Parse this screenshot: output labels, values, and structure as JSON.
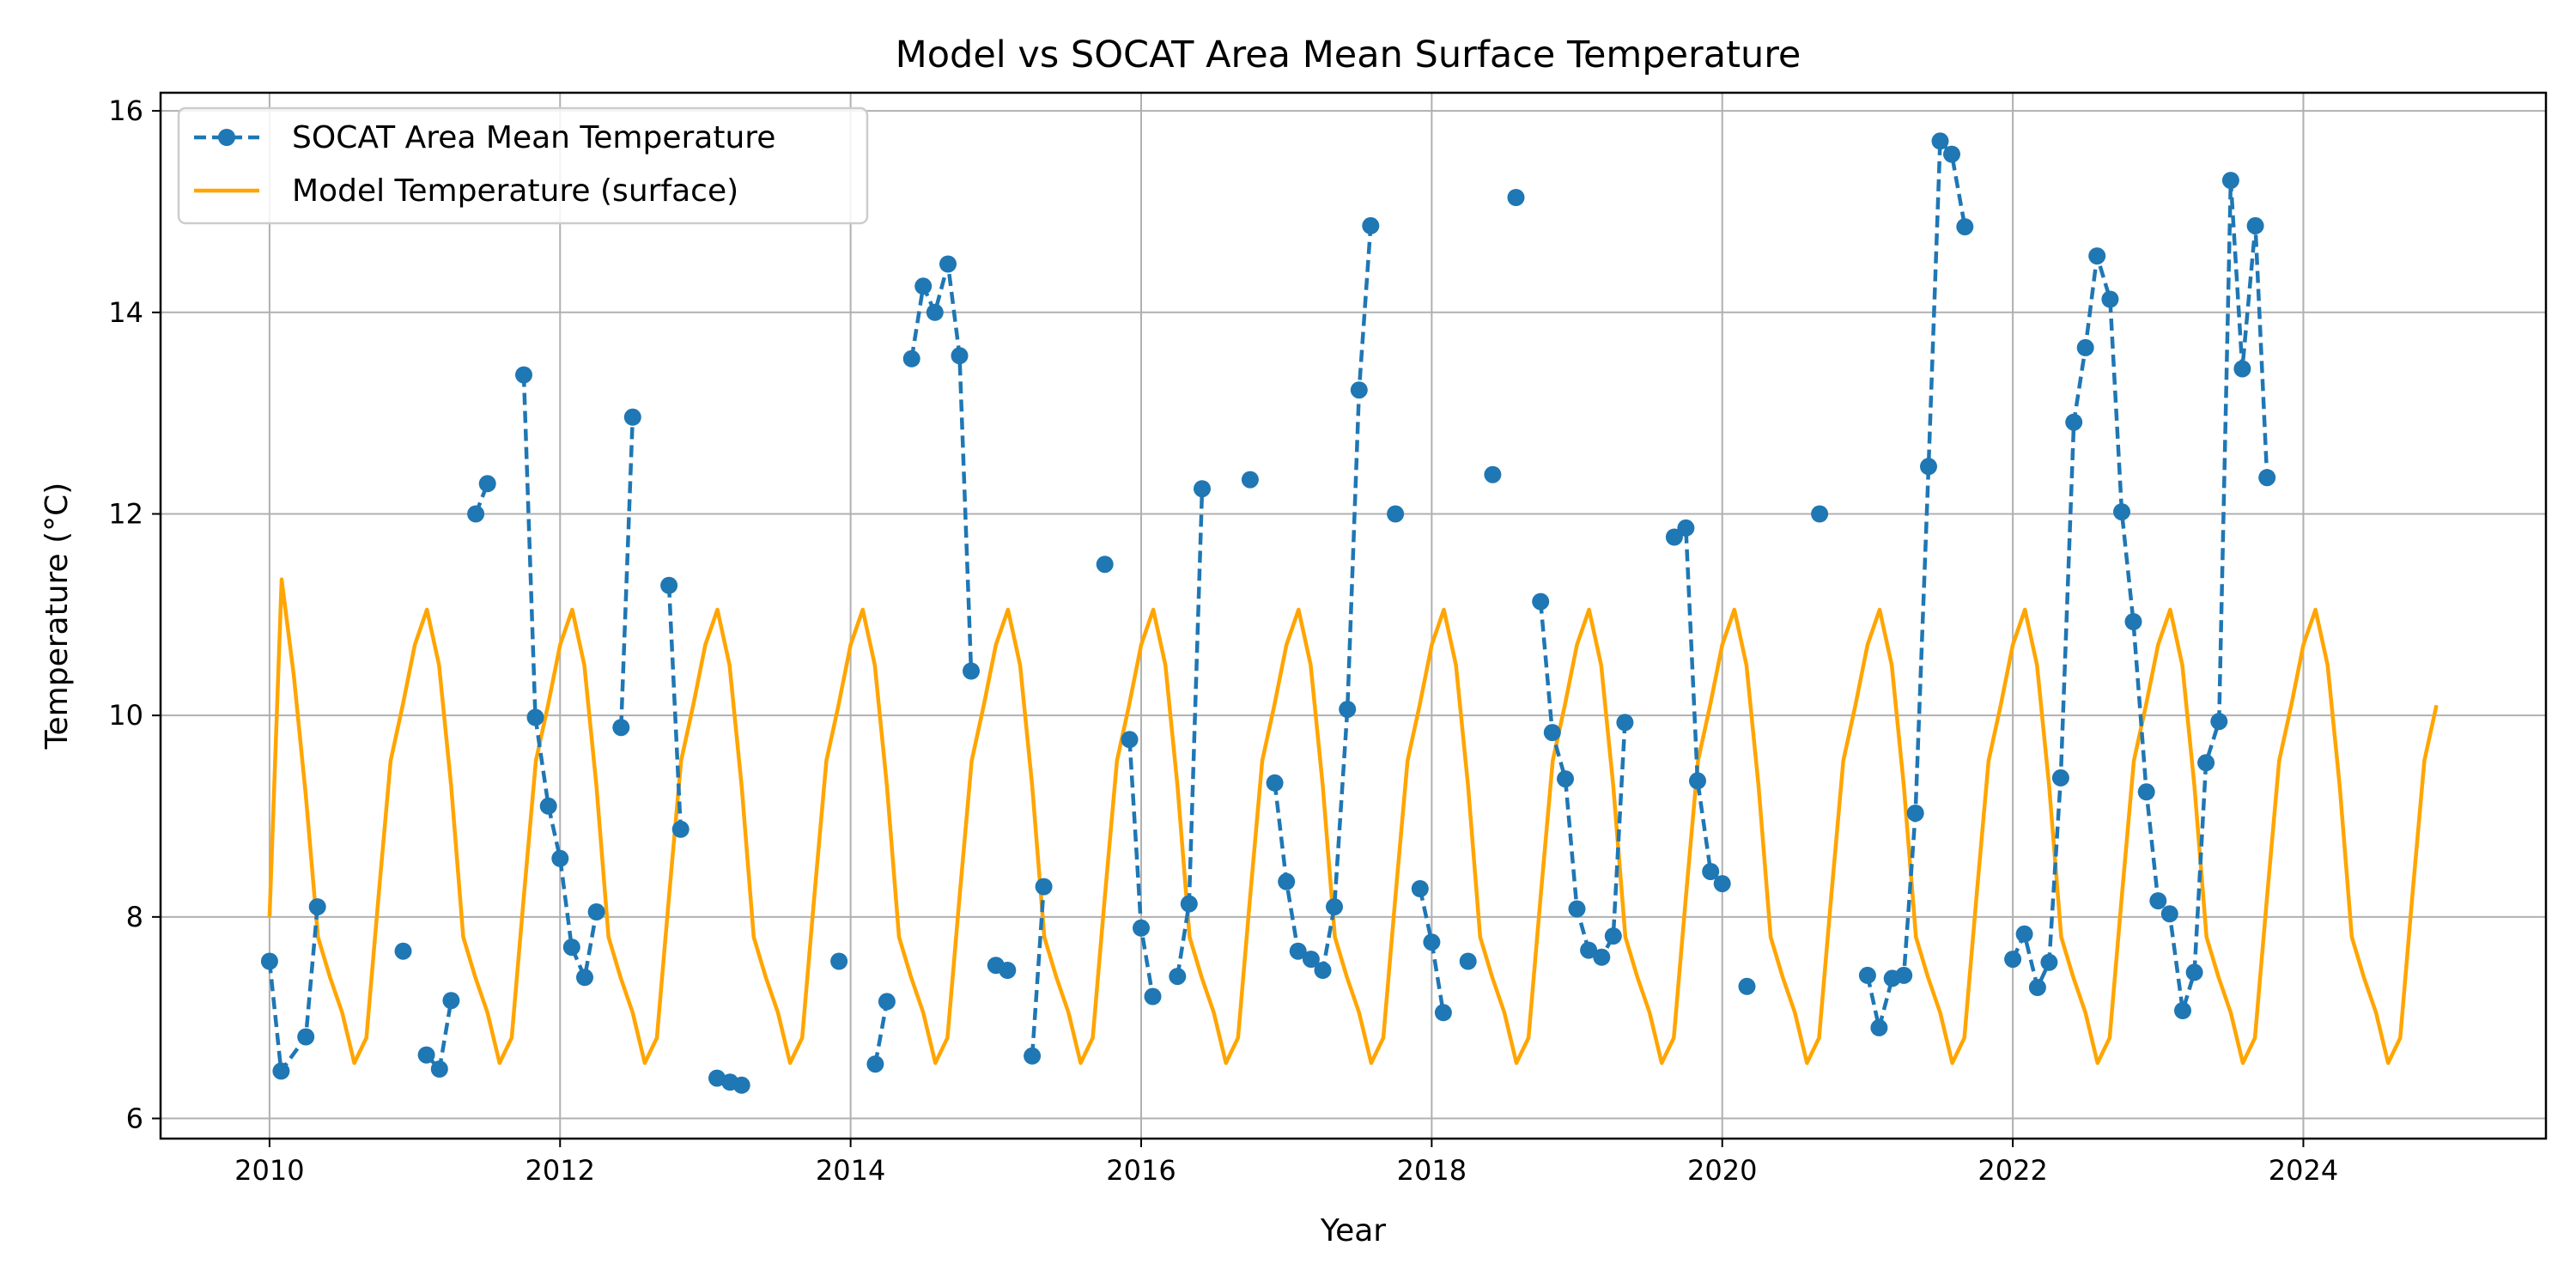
{
  "chart_data": {
    "type": "line",
    "title": "Model vs SOCAT Area Mean Surface Temperature",
    "xlabel": "Year",
    "ylabel": "Temperature (°C)",
    "xlim": [
      2009.25,
      2025.67
    ],
    "ylim": [
      5.8,
      16.18
    ],
    "x_ticks": [
      2010,
      2012,
      2014,
      2016,
      2018,
      2020,
      2022,
      2024
    ],
    "y_ticks": [
      6,
      8,
      10,
      12,
      14,
      16
    ],
    "grid": true,
    "legend_position": "upper-left",
    "series": [
      {
        "name": "SOCAT Area Mean Temperature",
        "color": "#1f77b4",
        "style": "dashed-with-markers",
        "segments": [
          [
            [
              2010.0,
              7.56
            ],
            [
              2010.08,
              6.47
            ],
            [
              2010.25,
              6.81
            ],
            [
              2010.33,
              8.1
            ]
          ],
          [
            [
              2010.92,
              7.66
            ]
          ],
          [
            [
              2011.08,
              6.63
            ],
            [
              2011.17,
              6.49
            ],
            [
              2011.25,
              7.17
            ]
          ],
          [
            [
              2011.42,
              12.0
            ],
            [
              2011.5,
              12.3
            ]
          ],
          [
            [
              2011.75,
              13.38
            ],
            [
              2011.83,
              9.98
            ],
            [
              2011.92,
              9.1
            ],
            [
              2012.0,
              8.58
            ],
            [
              2012.08,
              7.7
            ],
            [
              2012.17,
              7.4
            ],
            [
              2012.25,
              8.05
            ]
          ],
          [
            [
              2012.42,
              9.88
            ],
            [
              2012.5,
              12.96
            ]
          ],
          [
            [
              2012.75,
              11.29
            ],
            [
              2012.83,
              8.87
            ]
          ],
          [
            [
              2013.08,
              6.4
            ],
            [
              2013.17,
              6.36
            ],
            [
              2013.25,
              6.33
            ]
          ],
          [
            [
              2013.92,
              7.56
            ]
          ],
          [
            [
              2014.17,
              6.54
            ],
            [
              2014.25,
              7.16
            ]
          ],
          [
            [
              2014.42,
              13.54
            ],
            [
              2014.5,
              14.26
            ],
            [
              2014.58,
              14.0
            ],
            [
              2014.67,
              14.48
            ],
            [
              2014.75,
              13.57
            ],
            [
              2014.83,
              10.44
            ]
          ],
          [
            [
              2015.0,
              7.52
            ],
            [
              2015.08,
              7.47
            ]
          ],
          [
            [
              2015.25,
              6.62
            ],
            [
              2015.33,
              8.3
            ]
          ],
          [
            [
              2015.75,
              11.5
            ]
          ],
          [
            [
              2015.92,
              9.76
            ],
            [
              2016.0,
              7.89
            ],
            [
              2016.08,
              7.21
            ]
          ],
          [
            [
              2016.25,
              7.41
            ],
            [
              2016.33,
              8.13
            ],
            [
              2016.42,
              12.25
            ]
          ],
          [
            [
              2016.75,
              12.34
            ]
          ],
          [
            [
              2016.92,
              9.33
            ],
            [
              2017.0,
              8.35
            ],
            [
              2017.08,
              7.66
            ],
            [
              2017.17,
              7.58
            ],
            [
              2017.25,
              7.47
            ],
            [
              2017.33,
              8.1
            ],
            [
              2017.42,
              10.06
            ],
            [
              2017.5,
              13.23
            ],
            [
              2017.58,
              14.86
            ]
          ],
          [
            [
              2017.75,
              12.0
            ]
          ],
          [
            [
              2017.92,
              8.28
            ],
            [
              2018.0,
              7.75
            ],
            [
              2018.08,
              7.05
            ]
          ],
          [
            [
              2018.25,
              7.56
            ]
          ],
          [
            [
              2018.42,
              12.39
            ]
          ],
          [
            [
              2018.58,
              15.14
            ]
          ],
          [
            [
              2018.75,
              11.13
            ],
            [
              2018.83,
              9.83
            ],
            [
              2018.92,
              9.37
            ],
            [
              2019.0,
              8.08
            ],
            [
              2019.08,
              7.67
            ],
            [
              2019.17,
              7.6
            ],
            [
              2019.25,
              7.81
            ],
            [
              2019.33,
              9.93
            ]
          ],
          [
            [
              2019.67,
              11.77
            ],
            [
              2019.75,
              11.86
            ],
            [
              2019.83,
              9.35
            ],
            [
              2019.92,
              8.45
            ],
            [
              2020.0,
              8.33
            ]
          ],
          [
            [
              2020.17,
              7.31
            ]
          ],
          [
            [
              2020.67,
              12.0
            ]
          ],
          [
            [
              2021.0,
              7.42
            ],
            [
              2021.08,
              6.9
            ],
            [
              2021.17,
              7.39
            ],
            [
              2021.25,
              7.42
            ],
            [
              2021.33,
              9.03
            ],
            [
              2021.42,
              12.47
            ],
            [
              2021.5,
              15.7
            ],
            [
              2021.58,
              15.57
            ],
            [
              2021.67,
              14.85
            ]
          ],
          [
            [
              2022.0,
              7.58
            ],
            [
              2022.08,
              7.83
            ],
            [
              2022.17,
              7.3
            ],
            [
              2022.25,
              7.55
            ],
            [
              2022.33,
              9.38
            ],
            [
              2022.42,
              12.91
            ],
            [
              2022.5,
              13.65
            ],
            [
              2022.58,
              14.56
            ],
            [
              2022.67,
              14.13
            ],
            [
              2022.75,
              12.02
            ],
            [
              2022.83,
              10.93
            ],
            [
              2022.92,
              9.24
            ],
            [
              2023.0,
              8.16
            ],
            [
              2023.08,
              8.03
            ],
            [
              2023.17,
              7.07
            ],
            [
              2023.25,
              7.45
            ],
            [
              2023.33,
              9.53
            ],
            [
              2023.42,
              9.94
            ],
            [
              2023.5,
              15.31
            ],
            [
              2023.58,
              13.44
            ],
            [
              2023.67,
              14.86
            ],
            [
              2023.75,
              12.36
            ]
          ]
        ]
      },
      {
        "name": "Model Temperature (surface)",
        "color": "#ffa500",
        "style": "solid",
        "start": 2010.0,
        "step_years": 0.0833333,
        "cycle": [
          8.0,
          11.35,
          10.4,
          9.2,
          7.8,
          7.4,
          7.05,
          6.55,
          6.8,
          8.2,
          9.55,
          10.1,
          10.7,
          11.05,
          10.5,
          9.3,
          7.8,
          7.4,
          7.05,
          6.55,
          6.8,
          8.2,
          9.55,
          10.1,
          10.7
        ],
        "values_2011_on_annual_cycle": [
          11.05,
          10.5,
          9.3,
          7.8,
          7.4,
          7.05,
          6.55,
          6.8,
          8.2,
          9.55,
          10.1,
          10.7
        ],
        "note_years": 15
      }
    ]
  }
}
